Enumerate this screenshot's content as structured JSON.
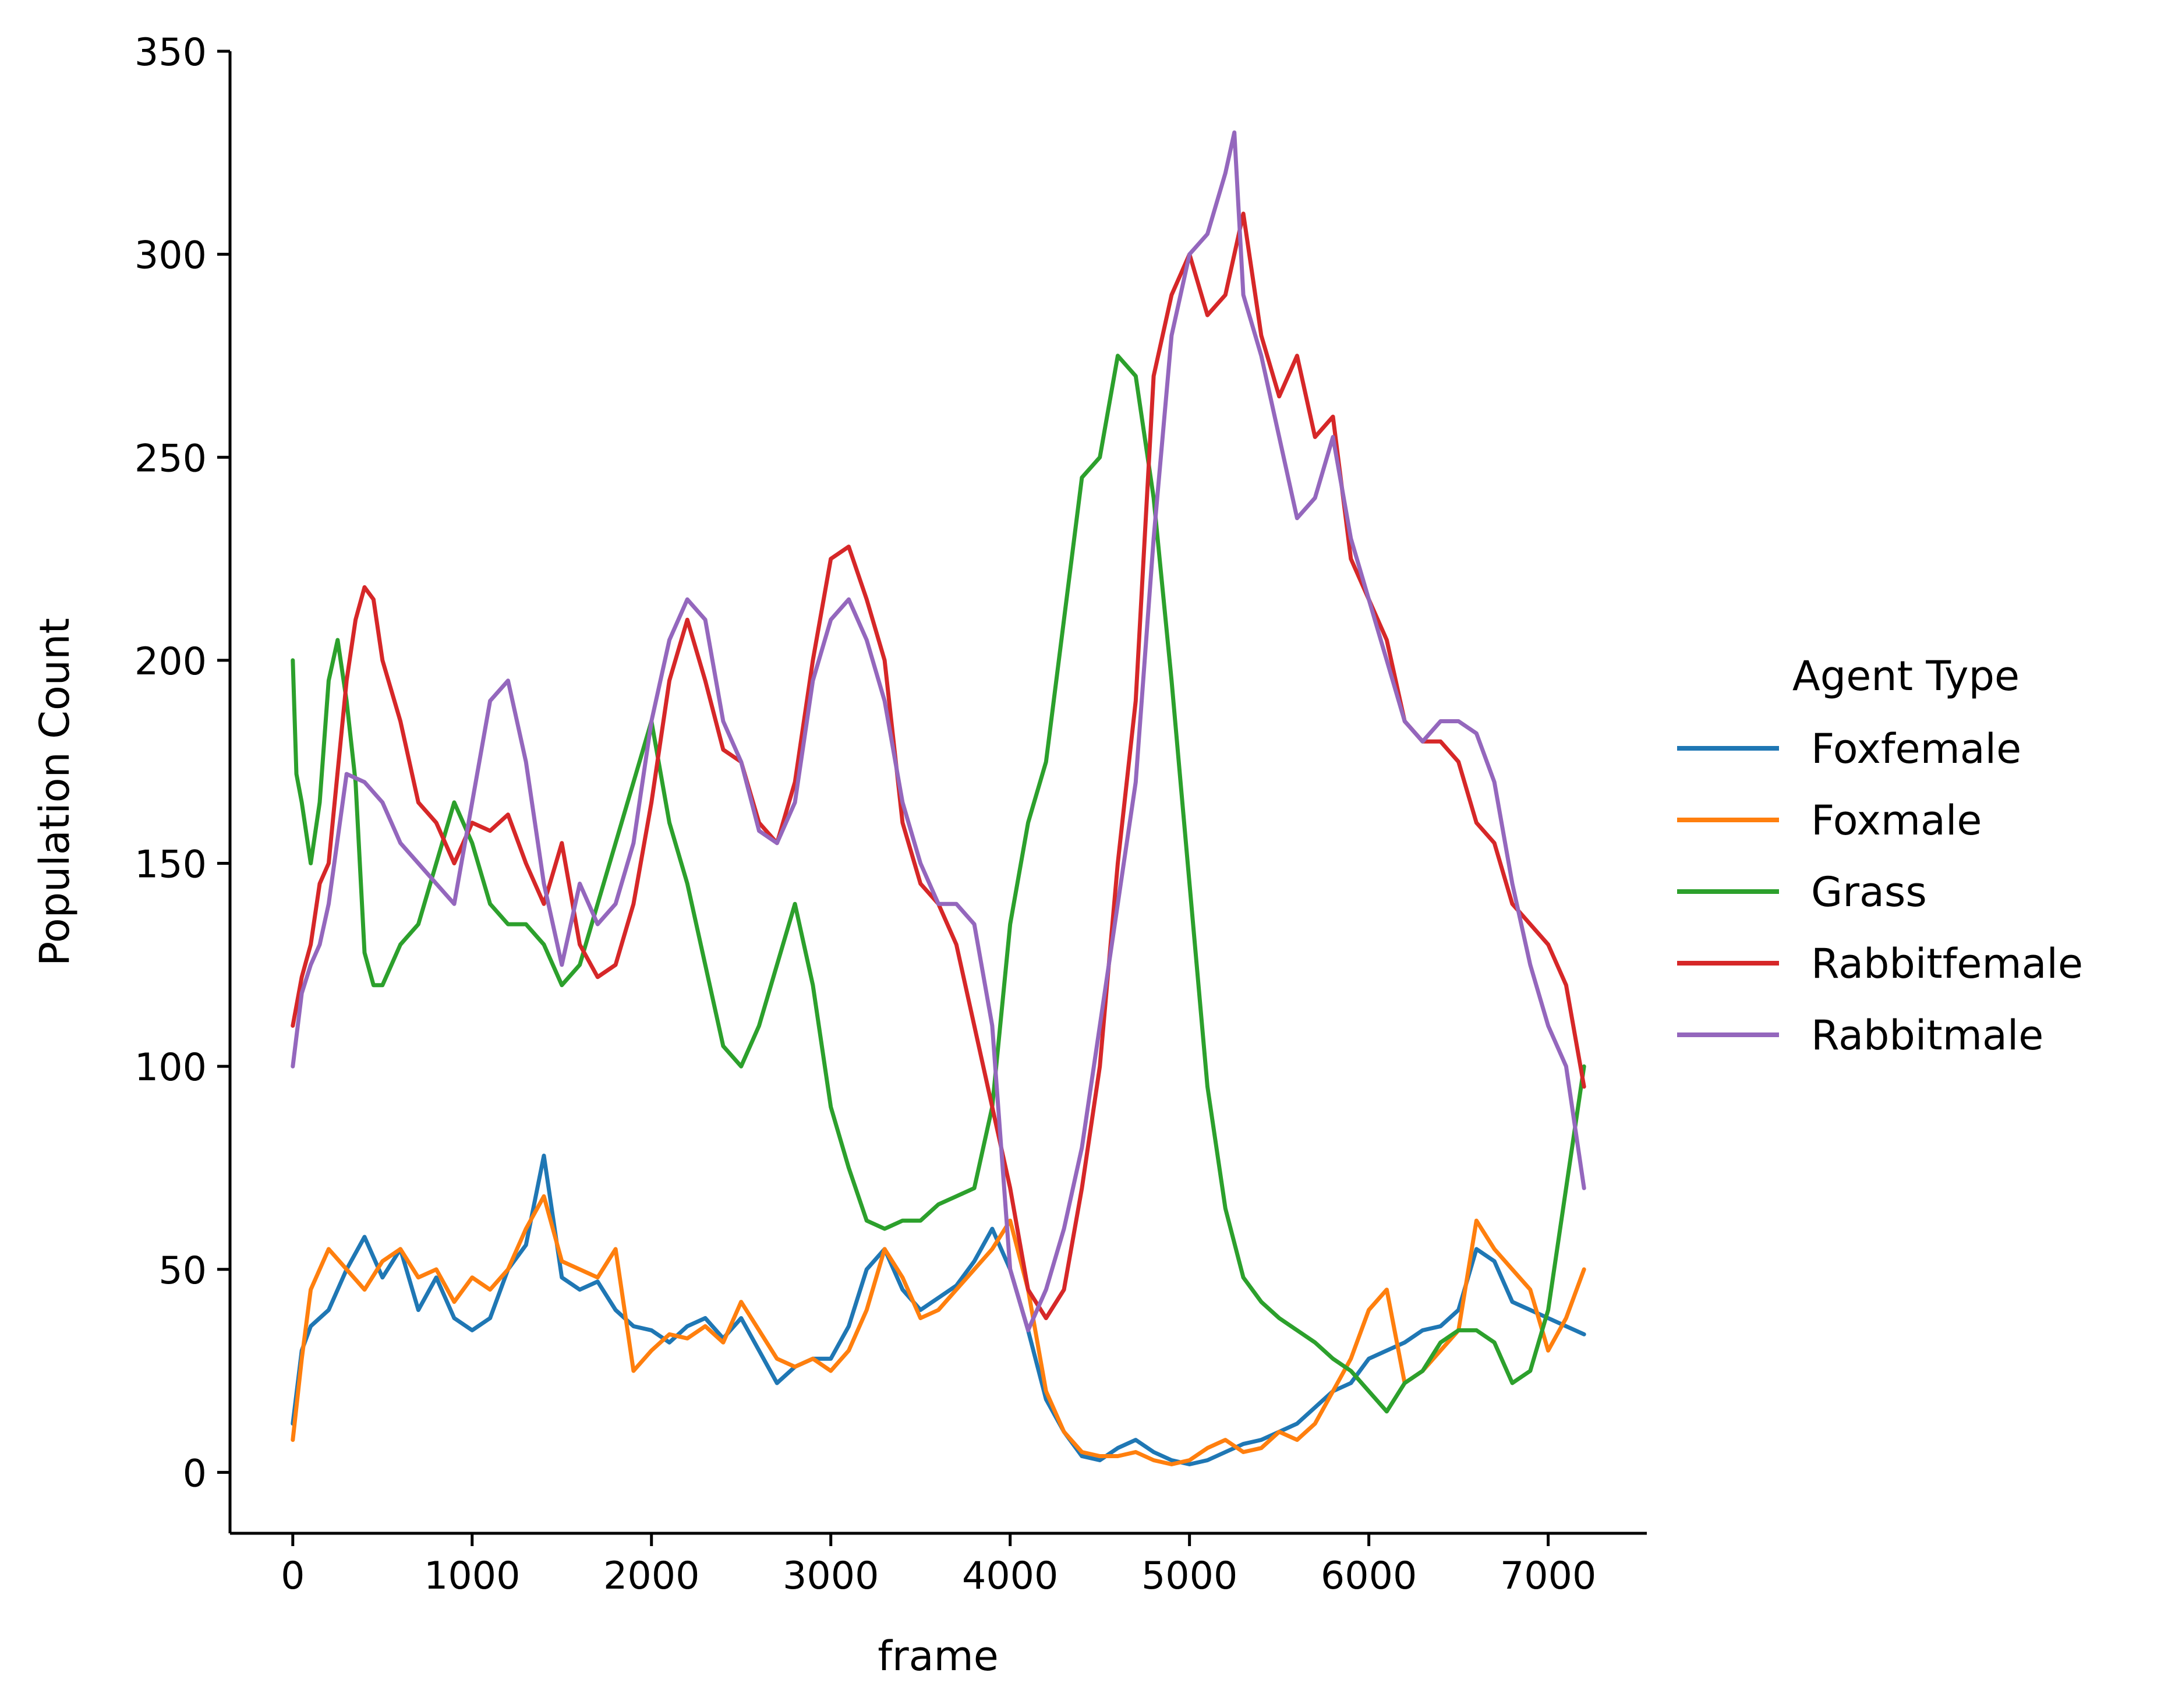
{
  "chart_data": {
    "type": "line",
    "xlabel": "frame",
    "ylabel": "Population Count",
    "xlim": [
      -350,
      7550
    ],
    "ylim": [
      -15,
      350
    ],
    "xticks": [
      0,
      1000,
      2000,
      3000,
      4000,
      5000,
      6000,
      7000
    ],
    "yticks": [
      0,
      50,
      100,
      150,
      200,
      250,
      300,
      350
    ],
    "grid": false,
    "legend": {
      "title": "Agent Type",
      "placement": "right"
    },
    "series": [
      {
        "name": "Foxfemale",
        "color": "#1f77b4",
        "x": [
          0,
          50,
          100,
          200,
          300,
          400,
          500,
          600,
          700,
          800,
          900,
          1000,
          1100,
          1200,
          1300,
          1400,
          1500,
          1600,
          1700,
          1800,
          1900,
          2000,
          2100,
          2200,
          2300,
          2400,
          2500,
          2600,
          2700,
          2800,
          2900,
          3000,
          3100,
          3200,
          3300,
          3400,
          3500,
          3600,
          3700,
          3800,
          3900,
          4000,
          4100,
          4200,
          4300,
          4400,
          4500,
          4600,
          4700,
          4800,
          4900,
          5000,
          5100,
          5200,
          5300,
          5400,
          5500,
          5600,
          5700,
          5800,
          5900,
          6000,
          6100,
          6200,
          6300,
          6400,
          6500,
          6600,
          6700,
          6800,
          6900,
          7000,
          7100,
          7200
        ],
        "y": [
          12,
          30,
          36,
          40,
          50,
          58,
          48,
          55,
          40,
          48,
          38,
          35,
          38,
          50,
          56,
          78,
          48,
          45,
          47,
          40,
          36,
          35,
          32,
          36,
          38,
          33,
          38,
          30,
          22,
          26,
          28,
          28,
          36,
          50,
          55,
          45,
          40,
          43,
          46,
          52,
          60,
          50,
          35,
          18,
          10,
          4,
          3,
          6,
          8,
          5,
          3,
          2,
          3,
          5,
          7,
          8,
          10,
          12,
          16,
          20,
          22,
          28,
          30,
          32,
          35,
          36,
          40,
          55,
          52,
          42,
          40,
          38,
          36,
          34
        ]
      },
      {
        "name": "Foxmale",
        "color": "#ff7f0e",
        "x": [
          0,
          50,
          100,
          200,
          300,
          400,
          500,
          600,
          700,
          800,
          900,
          1000,
          1100,
          1200,
          1300,
          1400,
          1500,
          1600,
          1700,
          1800,
          1900,
          2000,
          2100,
          2200,
          2300,
          2400,
          2500,
          2600,
          2700,
          2800,
          2900,
          3000,
          3100,
          3200,
          3300,
          3400,
          3500,
          3600,
          3700,
          3800,
          3900,
          4000,
          4100,
          4200,
          4300,
          4400,
          4500,
          4600,
          4700,
          4800,
          4900,
          5000,
          5100,
          5200,
          5300,
          5400,
          5500,
          5600,
          5700,
          5800,
          5900,
          6000,
          6100,
          6200,
          6300,
          6400,
          6500,
          6600,
          6700,
          6800,
          6900,
          7000,
          7100,
          7200
        ],
        "y": [
          8,
          28,
          45,
          55,
          50,
          45,
          52,
          55,
          48,
          50,
          42,
          48,
          45,
          50,
          60,
          68,
          52,
          50,
          48,
          55,
          25,
          30,
          34,
          33,
          36,
          32,
          42,
          35,
          28,
          26,
          28,
          25,
          30,
          40,
          55,
          48,
          38,
          40,
          45,
          50,
          55,
          62,
          45,
          20,
          10,
          5,
          4,
          4,
          5,
          3,
          2,
          3,
          6,
          8,
          5,
          6,
          10,
          8,
          12,
          20,
          28,
          40,
          45,
          22,
          25,
          30,
          35,
          62,
          55,
          50,
          45,
          30,
          38,
          50
        ]
      },
      {
        "name": "Grass",
        "color": "#2ca02c",
        "x": [
          0,
          20,
          50,
          100,
          150,
          200,
          250,
          300,
          350,
          400,
          450,
          500,
          600,
          700,
          800,
          900,
          1000,
          1100,
          1200,
          1300,
          1400,
          1500,
          1600,
          1700,
          1800,
          1900,
          2000,
          2100,
          2200,
          2300,
          2400,
          2500,
          2600,
          2700,
          2800,
          2900,
          3000,
          3100,
          3200,
          3300,
          3400,
          3500,
          3600,
          3700,
          3800,
          3900,
          4000,
          4100,
          4200,
          4300,
          4400,
          4500,
          4600,
          4700,
          4800,
          4900,
          5000,
          5100,
          5200,
          5300,
          5400,
          5500,
          5600,
          5700,
          5800,
          5900,
          6000,
          6100,
          6200,
          6300,
          6400,
          6500,
          6600,
          6700,
          6800,
          6900,
          7000,
          7100,
          7200
        ],
        "y": [
          200,
          172,
          165,
          150,
          165,
          195,
          205,
          190,
          170,
          128,
          120,
          120,
          130,
          135,
          150,
          165,
          155,
          140,
          135,
          135,
          130,
          120,
          125,
          140,
          155,
          170,
          185,
          160,
          145,
          125,
          105,
          100,
          110,
          125,
          140,
          120,
          90,
          75,
          62,
          60,
          62,
          62,
          66,
          68,
          70,
          90,
          135,
          160,
          175,
          210,
          245,
          250,
          275,
          270,
          240,
          195,
          145,
          95,
          65,
          48,
          42,
          38,
          35,
          32,
          28,
          25,
          20,
          15,
          22,
          25,
          32,
          35,
          35,
          32,
          22,
          25,
          40,
          70,
          100
        ]
      },
      {
        "name": "Rabbitfemale",
        "color": "#d62728",
        "x": [
          0,
          50,
          100,
          150,
          200,
          300,
          350,
          400,
          450,
          500,
          600,
          700,
          800,
          900,
          1000,
          1100,
          1200,
          1300,
          1400,
          1500,
          1600,
          1700,
          1800,
          1900,
          2000,
          2100,
          2200,
          2300,
          2400,
          2500,
          2600,
          2700,
          2800,
          2900,
          3000,
          3100,
          3200,
          3300,
          3400,
          3500,
          3600,
          3700,
          3800,
          3900,
          4000,
          4100,
          4200,
          4300,
          4400,
          4500,
          4600,
          4700,
          4800,
          4900,
          5000,
          5100,
          5200,
          5300,
          5400,
          5500,
          5600,
          5700,
          5800,
          5900,
          6000,
          6100,
          6200,
          6300,
          6400,
          6500,
          6600,
          6700,
          6800,
          6900,
          7000,
          7100,
          7200
        ],
        "y": [
          110,
          122,
          130,
          145,
          150,
          195,
          210,
          218,
          215,
          200,
          185,
          165,
          160,
          150,
          160,
          158,
          162,
          150,
          140,
          155,
          130,
          122,
          125,
          140,
          165,
          195,
          210,
          195,
          178,
          175,
          160,
          155,
          170,
          200,
          225,
          228,
          215,
          200,
          160,
          145,
          140,
          130,
          110,
          90,
          70,
          45,
          38,
          45,
          70,
          100,
          150,
          190,
          270,
          290,
          300,
          285,
          290,
          310,
          280,
          265,
          275,
          255,
          260,
          225,
          215,
          205,
          185,
          180,
          180,
          175,
          160,
          155,
          140,
          135,
          130,
          120,
          95
        ]
      },
      {
        "name": "Rabbitmale",
        "color": "#9467bd",
        "x": [
          0,
          50,
          100,
          150,
          200,
          300,
          400,
          500,
          600,
          700,
          800,
          900,
          1000,
          1100,
          1200,
          1300,
          1400,
          1500,
          1600,
          1700,
          1800,
          1900,
          2000,
          2100,
          2200,
          2300,
          2400,
          2500,
          2600,
          2700,
          2800,
          2900,
          3000,
          3100,
          3200,
          3300,
          3400,
          3500,
          3600,
          3700,
          3800,
          3900,
          4000,
          4100,
          4200,
          4300,
          4400,
          4500,
          4600,
          4700,
          4800,
          4900,
          5000,
          5100,
          5200,
          5250,
          5300,
          5400,
          5500,
          5600,
          5700,
          5800,
          5900,
          6000,
          6100,
          6200,
          6300,
          6400,
          6500,
          6600,
          6700,
          6800,
          6900,
          7000,
          7100,
          7200
        ],
        "y": [
          100,
          118,
          125,
          130,
          140,
          172,
          170,
          165,
          155,
          150,
          145,
          140,
          165,
          190,
          195,
          175,
          145,
          125,
          145,
          135,
          140,
          155,
          185,
          205,
          215,
          210,
          185,
          175,
          158,
          155,
          165,
          195,
          210,
          215,
          205,
          190,
          165,
          150,
          140,
          140,
          135,
          110,
          50,
          35,
          45,
          60,
          80,
          110,
          140,
          170,
          230,
          280,
          300,
          305,
          320,
          330,
          290,
          275,
          255,
          235,
          240,
          255,
          230,
          215,
          200,
          185,
          180,
          185,
          185,
          182,
          170,
          145,
          125,
          110,
          100,
          70
        ]
      }
    ]
  }
}
